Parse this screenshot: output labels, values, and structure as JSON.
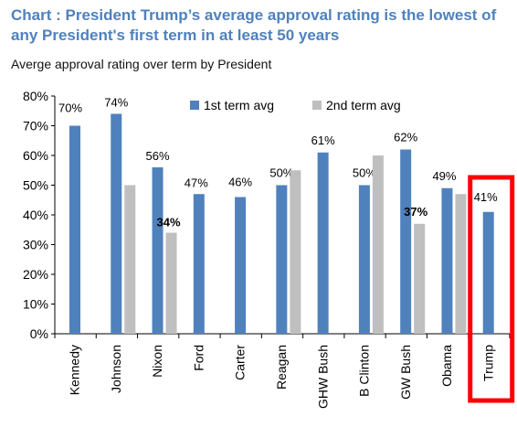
{
  "header": {
    "title": "Chart   : President Trump’s average approval rating is the lowest of any President's first term in at least 50 years",
    "subtitle": "Averge approval rating over term by President"
  },
  "colors": {
    "title": "#4f81bd",
    "first_term": "#4f81bd",
    "second_term": "#bfbfbf",
    "highlight_box": "#ff0000",
    "axis": "#000000"
  },
  "chart_data": {
    "type": "bar",
    "title": "Chart   : President Trump’s average approval rating is the lowest of any President's first term in at least 50 years",
    "subtitle": "Averge approval rating over term by President",
    "xlabel": "",
    "ylabel": "",
    "ylim": [
      0,
      80
    ],
    "yticks": [
      "0%",
      "10%",
      "20%",
      "30%",
      "40%",
      "50%",
      "60%",
      "70%",
      "80%"
    ],
    "grid": false,
    "legend_position": "top",
    "categories": [
      "Kennedy",
      "Johnson",
      "Nixon",
      "Ford",
      "Carter",
      "Reagan",
      "GHW Bush",
      "B Clinton",
      "GW Bush",
      "Obama",
      "Trump"
    ],
    "series": [
      {
        "name": "1st term avg",
        "values": [
          70,
          74,
          56,
          47,
          46,
          50,
          61,
          50,
          62,
          49,
          41
        ],
        "labels": [
          "70%",
          "74%",
          "56%",
          "47%",
          "46%",
          "50%",
          "61%",
          "50%",
          "62%",
          "49%",
          "41%"
        ]
      },
      {
        "name": "2nd term avg",
        "values": [
          null,
          50,
          34,
          null,
          null,
          55,
          null,
          60,
          37,
          47,
          null
        ],
        "labels": [
          null,
          null,
          "34%",
          null,
          null,
          null,
          null,
          null,
          "37%",
          null,
          null
        ]
      }
    ],
    "highlighted_category": "Trump"
  }
}
